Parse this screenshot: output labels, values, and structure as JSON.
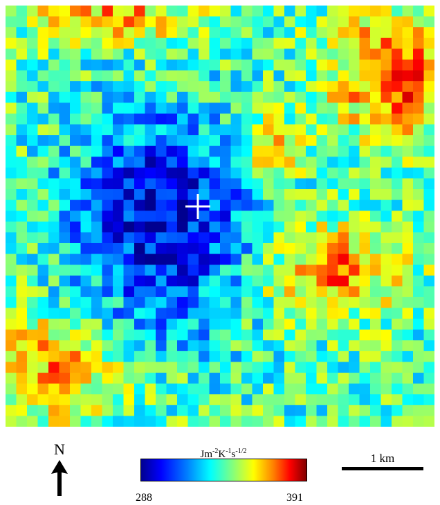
{
  "map": {
    "grid": {
      "cols": 40,
      "rows": 39
    },
    "value_range": [
      288,
      391
    ],
    "marker": "crosshair-center",
    "colormap": [
      "#00008f",
      "#0000ff",
      "#0080ff",
      "#00ffff",
      "#80ff80",
      "#ffff00",
      "#ff8000",
      "#ff0000",
      "#800000"
    ]
  },
  "legend": {
    "north": "N",
    "unit": {
      "base": "Jm",
      "e1": "-2",
      "k": "K",
      "e2": "-1",
      "s": "s",
      "e3": "-1/2"
    },
    "min_label": "288",
    "max_label": "391",
    "scale_label": "1 km"
  }
}
